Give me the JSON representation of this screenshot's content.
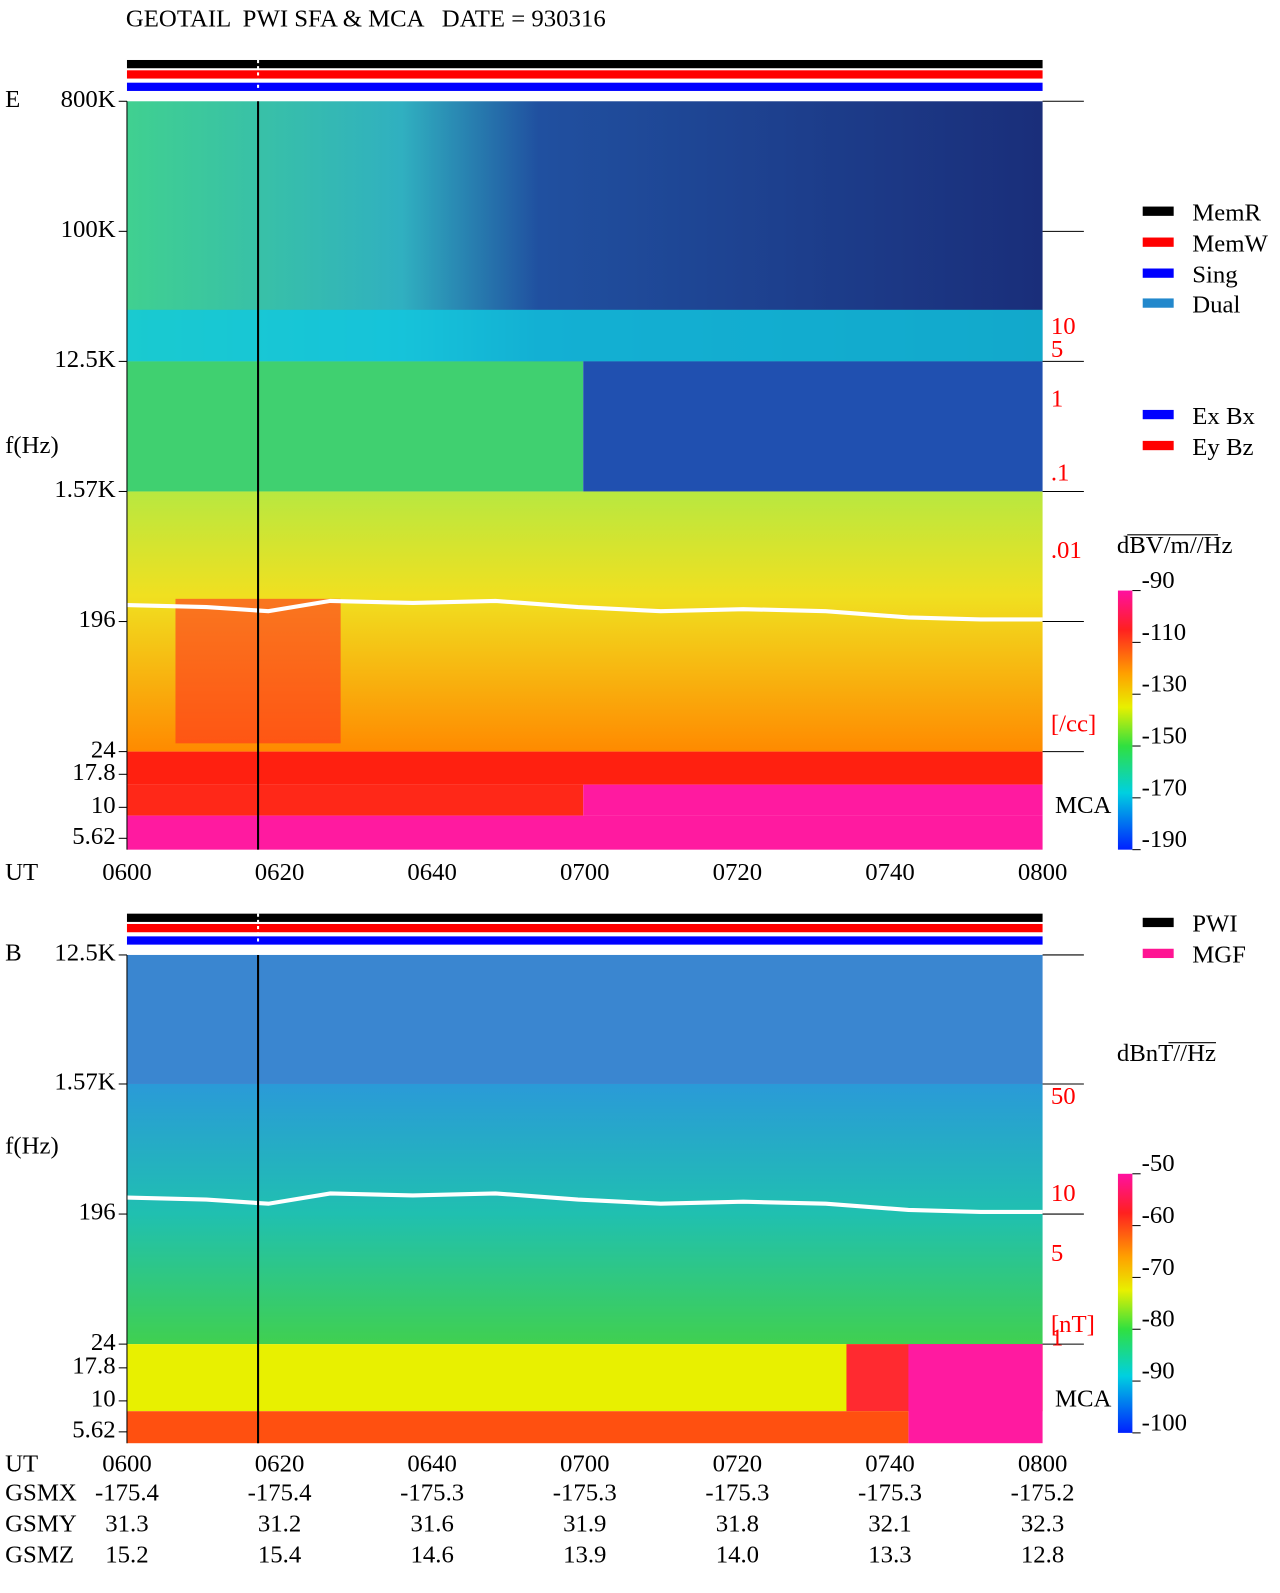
{
  "title": "GEOTAIL  PWI SFA & MCA   DATE = 930316",
  "panels": [
    {
      "id": "E",
      "ylabel": "f(Hz)",
      "yticks": [
        "800K",
        "100K",
        "12.5K",
        "1.57K",
        "196",
        "24",
        "17.8",
        "10",
        "5.62"
      ],
      "right_labels": [
        "10",
        "5",
        "1",
        ".1",
        ".01",
        "[/cc]"
      ],
      "mca": "MCA",
      "x_label": "UT",
      "xticks": [
        "0600",
        "0620",
        "0640",
        "0700",
        "0720",
        "0740",
        "0800"
      ],
      "colorbar": {
        "label": "dBV/m//Hz",
        "lim": [
          -190,
          -90
        ],
        "ticks": [
          -90,
          -110,
          -130,
          -150,
          -170,
          -190
        ]
      }
    },
    {
      "id": "B",
      "ylabel": "f(Hz)",
      "yticks": [
        "12.5K",
        "1.57K",
        "196",
        "24",
        "17.8",
        "10",
        "5.62"
      ],
      "right_labels": [
        "50",
        "10",
        "5",
        "1",
        "[nT]"
      ],
      "mca": "MCA",
      "x_label": "UT",
      "xticks": [
        "0600",
        "0620",
        "0640",
        "0700",
        "0720",
        "0740",
        "0800"
      ],
      "colorbar": {
        "label": "dBnT//Hz",
        "lim": [
          -100,
          -50
        ],
        "ticks": [
          -50,
          -60,
          -70,
          -80,
          -90,
          -100
        ]
      }
    }
  ],
  "status_legend": [
    {
      "name": "MemR",
      "color": "#000000"
    },
    {
      "name": "MemW",
      "color": "#ff0000"
    },
    {
      "name": "Sing",
      "color": "#0000ff"
    },
    {
      "name": "Dual",
      "color": "#2288cc"
    }
  ],
  "component_legend": [
    {
      "name": "Ex Bx",
      "color": "#0000ff"
    },
    {
      "name": "Ey Bz",
      "color": "#ff0000"
    }
  ],
  "source_legend": [
    {
      "name": "PWI",
      "color": "#000000"
    },
    {
      "name": "MGF",
      "color": "#ff1493"
    }
  ],
  "orbit": {
    "rows": [
      {
        "label": "GSMX",
        "values": [
          "-175.4",
          "-175.4",
          "-175.3",
          "-175.3",
          "-175.3",
          "-175.3",
          "-175.2"
        ]
      },
      {
        "label": "GSMY",
        "values": [
          "31.3",
          "31.2",
          "31.6",
          "31.9",
          "31.8",
          "32.1",
          "32.3"
        ]
      },
      {
        "label": "GSMZ",
        "values": [
          "15.2",
          "15.4",
          "14.6",
          "13.9",
          "14.0",
          "13.3",
          "12.8"
        ]
      }
    ]
  }
}
